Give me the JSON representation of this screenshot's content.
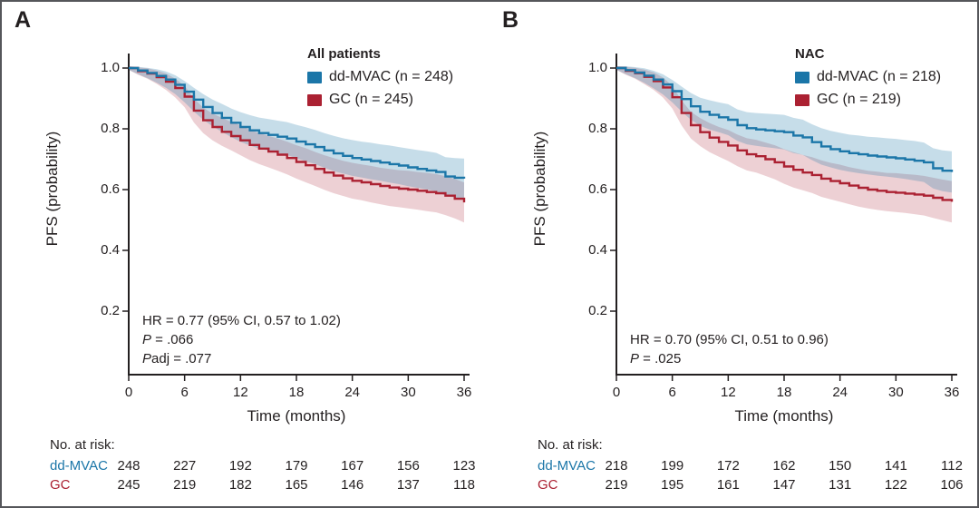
{
  "figure": {
    "background": "#ffffff",
    "border_color": "#55565a"
  },
  "colors": {
    "ddmvac": "#1b76a8",
    "gc": "#ab2132",
    "text": "#231f20",
    "axis": "#231f20",
    "band_opacity_ddmvac": 0.25,
    "band_opacity_gc": 0.21
  },
  "axes": {
    "xlabel": "Time (months)",
    "ylabel": "PFS (probability)",
    "xticks": [
      {
        "label": "0",
        "value": 0
      },
      {
        "label": "6",
        "value": 6
      },
      {
        "label": "12",
        "value": 12
      },
      {
        "label": "18",
        "value": 18
      },
      {
        "label": "24",
        "value": 24
      },
      {
        "label": "30",
        "value": 30
      },
      {
        "label": "36",
        "value": 36
      }
    ],
    "yticks": [
      {
        "label": "1.0",
        "value": 1.0
      },
      {
        "label": "0.8",
        "value": 0.8
      },
      {
        "label": "0.6",
        "value": 0.6
      },
      {
        "label": "0.4",
        "value": 0.4
      },
      {
        "label": "0.2",
        "value": 0.2
      }
    ],
    "xlim": [
      0,
      36
    ],
    "grid": false
  },
  "chart_data": [
    {
      "type": "line",
      "style": "kaplan-meier-step",
      "label": "A",
      "legend_title": "All patients",
      "legend_position": "top-right",
      "xlabel": "Time (months)",
      "ylabel": "PFS (probability)",
      "xlim": [
        0,
        36
      ],
      "x": [
        0,
        1,
        2,
        3,
        4,
        5,
        6,
        7,
        8,
        9,
        10,
        11,
        12,
        13,
        14,
        15,
        16,
        17,
        18,
        19,
        20,
        21,
        22,
        23,
        24,
        25,
        26,
        27,
        28,
        29,
        30,
        31,
        32,
        33,
        34,
        35,
        36
      ],
      "series": [
        {
          "name": "dd-MVAC",
          "legend_label": "dd-MVAC (n = 248)",
          "n": 248,
          "color_key": "ddmvac",
          "values": [
            1.0,
            0.992,
            0.984,
            0.974,
            0.962,
            0.945,
            0.922,
            0.896,
            0.872,
            0.852,
            0.836,
            0.82,
            0.806,
            0.795,
            0.786,
            0.78,
            0.774,
            0.768,
            0.758,
            0.749,
            0.74,
            0.729,
            0.719,
            0.711,
            0.704,
            0.699,
            0.694,
            0.689,
            0.684,
            0.679,
            0.673,
            0.668,
            0.663,
            0.658,
            0.643,
            0.639,
            0.636
          ],
          "ci_halfwidth": [
            0.006,
            0.012,
            0.017,
            0.022,
            0.027,
            0.031,
            0.035,
            0.039,
            0.042,
            0.044,
            0.046,
            0.047,
            0.049,
            0.05,
            0.051,
            0.052,
            0.053,
            0.054,
            0.055,
            0.056,
            0.056,
            0.057,
            0.058,
            0.058,
            0.059,
            0.059,
            0.06,
            0.06,
            0.061,
            0.061,
            0.062,
            0.062,
            0.063,
            0.063,
            0.064,
            0.065,
            0.066
          ]
        },
        {
          "name": "GC",
          "legend_label": "GC (n = 245)",
          "n": 245,
          "color_key": "gc",
          "values": [
            1.0,
            0.99,
            0.982,
            0.97,
            0.955,
            0.934,
            0.906,
            0.86,
            0.828,
            0.806,
            0.79,
            0.776,
            0.762,
            0.747,
            0.735,
            0.725,
            0.715,
            0.704,
            0.691,
            0.68,
            0.668,
            0.656,
            0.646,
            0.637,
            0.629,
            0.624,
            0.618,
            0.612,
            0.607,
            0.603,
            0.6,
            0.596,
            0.592,
            0.588,
            0.58,
            0.57,
            0.558
          ],
          "ci_halfwidth": [
            0.006,
            0.012,
            0.017,
            0.022,
            0.027,
            0.031,
            0.035,
            0.039,
            0.042,
            0.044,
            0.046,
            0.047,
            0.049,
            0.05,
            0.051,
            0.052,
            0.053,
            0.054,
            0.055,
            0.056,
            0.056,
            0.057,
            0.058,
            0.058,
            0.059,
            0.059,
            0.06,
            0.06,
            0.061,
            0.061,
            0.062,
            0.062,
            0.063,
            0.063,
            0.064,
            0.065,
            0.066
          ]
        }
      ],
      "stats": [
        {
          "italic_prefix": "",
          "text": "HR = 0.77 (95% CI, 0.57 to 1.02)"
        },
        {
          "italic_prefix": "P",
          "text": " = .066"
        },
        {
          "italic_prefix": "P",
          "text": "adj = .077"
        }
      ],
      "risk_table": {
        "header": "No. at risk:",
        "times": [
          0,
          6,
          12,
          18,
          24,
          30,
          36
        ],
        "rows": [
          {
            "name": "dd-MVAC",
            "color_key": "ddmvac",
            "counts": [
              248,
              227,
              192,
              179,
              167,
              156,
              123
            ]
          },
          {
            "name": "GC",
            "color_key": "gc",
            "counts": [
              245,
              219,
              182,
              165,
              146,
              137,
              118
            ]
          }
        ]
      }
    },
    {
      "type": "line",
      "style": "kaplan-meier-step",
      "label": "B",
      "legend_title": "NAC",
      "legend_position": "top-right",
      "xlabel": "Time (months)",
      "ylabel": "PFS (probability)",
      "xlim": [
        0,
        36
      ],
      "x": [
        0,
        1,
        2,
        3,
        4,
        5,
        6,
        7,
        8,
        9,
        10,
        11,
        12,
        13,
        14,
        15,
        16,
        17,
        18,
        19,
        20,
        21,
        22,
        23,
        24,
        25,
        26,
        27,
        28,
        29,
        30,
        31,
        32,
        33,
        34,
        35,
        36
      ],
      "series": [
        {
          "name": "dd-MVAC",
          "legend_label": "dd-MVAC (n = 218)",
          "n": 218,
          "color_key": "ddmvac",
          "values": [
            1.0,
            0.993,
            0.985,
            0.975,
            0.962,
            0.946,
            0.924,
            0.898,
            0.874,
            0.856,
            0.846,
            0.838,
            0.83,
            0.812,
            0.802,
            0.798,
            0.795,
            0.792,
            0.789,
            0.778,
            0.772,
            0.756,
            0.742,
            0.733,
            0.726,
            0.72,
            0.716,
            0.712,
            0.709,
            0.706,
            0.703,
            0.699,
            0.695,
            0.69,
            0.67,
            0.662,
            0.658
          ],
          "ci_halfwidth": [
            0.006,
            0.013,
            0.018,
            0.024,
            0.029,
            0.033,
            0.037,
            0.041,
            0.044,
            0.046,
            0.048,
            0.049,
            0.051,
            0.052,
            0.053,
            0.054,
            0.055,
            0.056,
            0.057,
            0.058,
            0.058,
            0.059,
            0.06,
            0.06,
            0.061,
            0.061,
            0.062,
            0.062,
            0.063,
            0.063,
            0.064,
            0.064,
            0.065,
            0.065,
            0.066,
            0.067,
            0.068
          ]
        },
        {
          "name": "GC",
          "legend_label": "GC (n = 219)",
          "n": 219,
          "color_key": "gc",
          "values": [
            1.0,
            0.991,
            0.983,
            0.971,
            0.957,
            0.936,
            0.904,
            0.852,
            0.812,
            0.789,
            0.771,
            0.757,
            0.745,
            0.729,
            0.716,
            0.71,
            0.7,
            0.69,
            0.676,
            0.665,
            0.656,
            0.648,
            0.636,
            0.628,
            0.621,
            0.613,
            0.606,
            0.6,
            0.596,
            0.592,
            0.59,
            0.587,
            0.584,
            0.58,
            0.573,
            0.566,
            0.56
          ],
          "ci_halfwidth": [
            0.006,
            0.013,
            0.018,
            0.024,
            0.029,
            0.033,
            0.037,
            0.041,
            0.044,
            0.046,
            0.048,
            0.049,
            0.051,
            0.052,
            0.053,
            0.054,
            0.055,
            0.056,
            0.057,
            0.058,
            0.058,
            0.059,
            0.06,
            0.06,
            0.061,
            0.061,
            0.062,
            0.062,
            0.063,
            0.063,
            0.064,
            0.064,
            0.065,
            0.065,
            0.066,
            0.067,
            0.068
          ]
        }
      ],
      "stats": [
        {
          "italic_prefix": "",
          "text": "HR = 0.70 (95% CI, 0.51 to 0.96)"
        },
        {
          "italic_prefix": "P",
          "text": " = .025"
        }
      ],
      "risk_table": {
        "header": "No. at risk:",
        "times": [
          0,
          6,
          12,
          18,
          24,
          30,
          36
        ],
        "rows": [
          {
            "name": "dd-MVAC",
            "color_key": "ddmvac",
            "counts": [
              218,
              199,
              172,
              162,
              150,
              141,
              112
            ]
          },
          {
            "name": "GC",
            "color_key": "gc",
            "counts": [
              219,
              195,
              161,
              147,
              131,
              122,
              106
            ]
          }
        ]
      }
    }
  ]
}
